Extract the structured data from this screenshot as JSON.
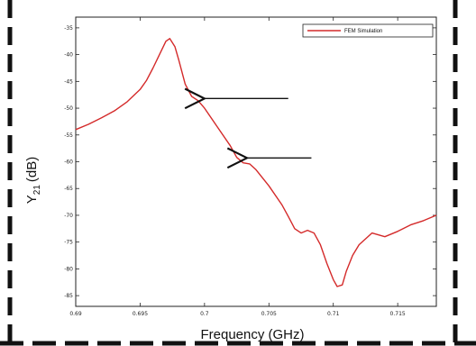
{
  "chart_data": {
    "type": "line",
    "xlabel": "Frequency (GHz)",
    "ylabel_main": "Y",
    "ylabel_sub": "21",
    "ylabel_unit": "(dB)",
    "xlim": [
      0.69,
      0.718
    ],
    "ylim": [
      -87,
      -33
    ],
    "x_ticks": [
      0.69,
      0.695,
      0.7,
      0.705,
      0.71,
      0.715
    ],
    "x_tick_labels": [
      "0.69",
      "0.695",
      "0.7",
      "0.705",
      "0.71",
      "0.715"
    ],
    "y_ticks": [
      -35,
      -40,
      -45,
      -50,
      -55,
      -60,
      -65,
      -70,
      -75,
      -80,
      -85
    ],
    "y_tick_labels": [
      "-35",
      "-40",
      "-45",
      "-50",
      "-55",
      "-60",
      "-65",
      "-70",
      "-75",
      "-80",
      "-85"
    ],
    "grid": false,
    "legend_position": "top-right",
    "series": [
      {
        "name": "FEM Simulation",
        "color": "#d42a2a",
        "x": [
          0.69,
          0.691,
          0.692,
          0.693,
          0.694,
          0.695,
          0.6955,
          0.696,
          0.6965,
          0.697,
          0.6973,
          0.6977,
          0.698,
          0.6985,
          0.699,
          0.6995,
          0.7,
          0.701,
          0.702,
          0.7025,
          0.703,
          0.7035,
          0.704,
          0.705,
          0.706,
          0.7065,
          0.707,
          0.7075,
          0.708,
          0.7085,
          0.709,
          0.7095,
          0.71,
          0.7103,
          0.7107,
          0.711,
          0.7115,
          0.712,
          0.713,
          0.714,
          0.715,
          0.716,
          0.717,
          0.718
        ],
        "y": [
          -54,
          -53,
          -51.8,
          -50.5,
          -48.8,
          -46.5,
          -44.8,
          -42.5,
          -40,
          -37.5,
          -37,
          -38.5,
          -41,
          -45.5,
          -47.8,
          -48.6,
          -50,
          -53.5,
          -57,
          -59.2,
          -60.2,
          -60.4,
          -61.5,
          -64.5,
          -68,
          -70.2,
          -72.5,
          -73.3,
          -72.8,
          -73.3,
          -75.5,
          -79,
          -82,
          -83.3,
          -83,
          -80.5,
          -77.5,
          -75.5,
          -73.3,
          -74,
          -73,
          -71.8,
          -71,
          -70
        ]
      }
    ],
    "annotations": [
      {
        "type": "arrow",
        "from": [
          0.7065,
          -48.2
        ],
        "to": [
          0.7,
          -48.2
        ]
      },
      {
        "type": "arrow",
        "from": [
          0.7083,
          -59.3
        ],
        "to": [
          0.7033,
          -59.3
        ]
      }
    ]
  },
  "colors": {
    "border_dash": "#111111",
    "axis": "#222222",
    "arrow": "#111111"
  }
}
